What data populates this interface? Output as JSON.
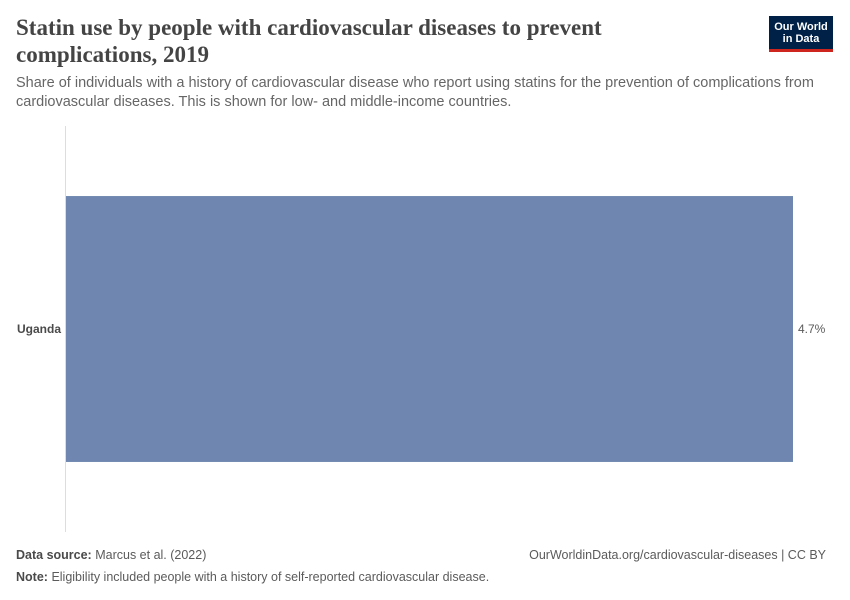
{
  "header": {
    "title": "Statin use by people with cardiovascular diseases to prevent complications, 2019",
    "subtitle": "Share of individuals with a history of cardiovascular disease who report using statins for the prevention of complications from cardiovascular diseases. This is shown for low- and middle-income countries."
  },
  "logo": {
    "line1": "Our World",
    "line2": "in Data"
  },
  "chart_data": {
    "type": "bar",
    "orientation": "horizontal",
    "categories": [
      "Uganda"
    ],
    "values": [
      4.7
    ],
    "value_labels": [
      "4.7%"
    ],
    "unit": "%",
    "xlim": [
      0,
      4.7
    ],
    "bar_color": "#6f87b0",
    "grid": false
  },
  "footer": {
    "source_label": "Data source:",
    "source_text": "Marcus et al. (2022)",
    "url_text": "OurWorldinData.org/cardiovascular-diseases | CC BY",
    "note_label": "Note:",
    "note_text": "Eligibility included people with a history of self-reported cardiovascular disease."
  }
}
